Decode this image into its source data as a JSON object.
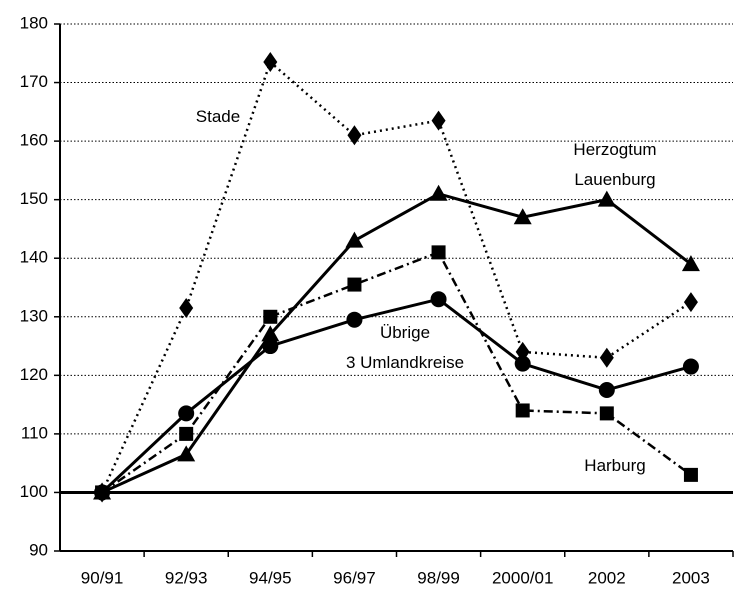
{
  "chart_data": {
    "type": "line",
    "categories": [
      "90/91",
      "92/93",
      "94/95",
      "96/97",
      "98/99",
      "2000/01",
      "2002",
      "2003"
    ],
    "ylim": [
      90,
      180
    ],
    "yticks": [
      90,
      100,
      110,
      120,
      130,
      140,
      150,
      160,
      170,
      180
    ],
    "grid": true,
    "baseline": 100,
    "series": [
      {
        "name": "Stade",
        "color": "#000000",
        "marker": "diamond",
        "line_style": "dotted",
        "values": [
          100,
          131.5,
          173.5,
          161,
          163.5,
          124,
          123,
          132.5
        ]
      },
      {
        "name": "Herzogtum\nLauenburg",
        "color": "#000000",
        "marker": "triangle",
        "line_style": "solid",
        "values": [
          100,
          106.5,
          127,
          143,
          151,
          147,
          150,
          139
        ]
      },
      {
        "name": "Übrige\n3 Umlandkreise",
        "color": "#000000",
        "marker": "circle",
        "line_style": "solid",
        "values": [
          100,
          113.5,
          125,
          129.5,
          133,
          122,
          117.5,
          121.5
        ]
      },
      {
        "name": "Harburg",
        "color": "#000000",
        "marker": "square",
        "line_style": "dash-dot",
        "values": [
          100,
          110,
          130,
          135.5,
          141,
          114,
          113.5,
          103
        ]
      }
    ]
  }
}
